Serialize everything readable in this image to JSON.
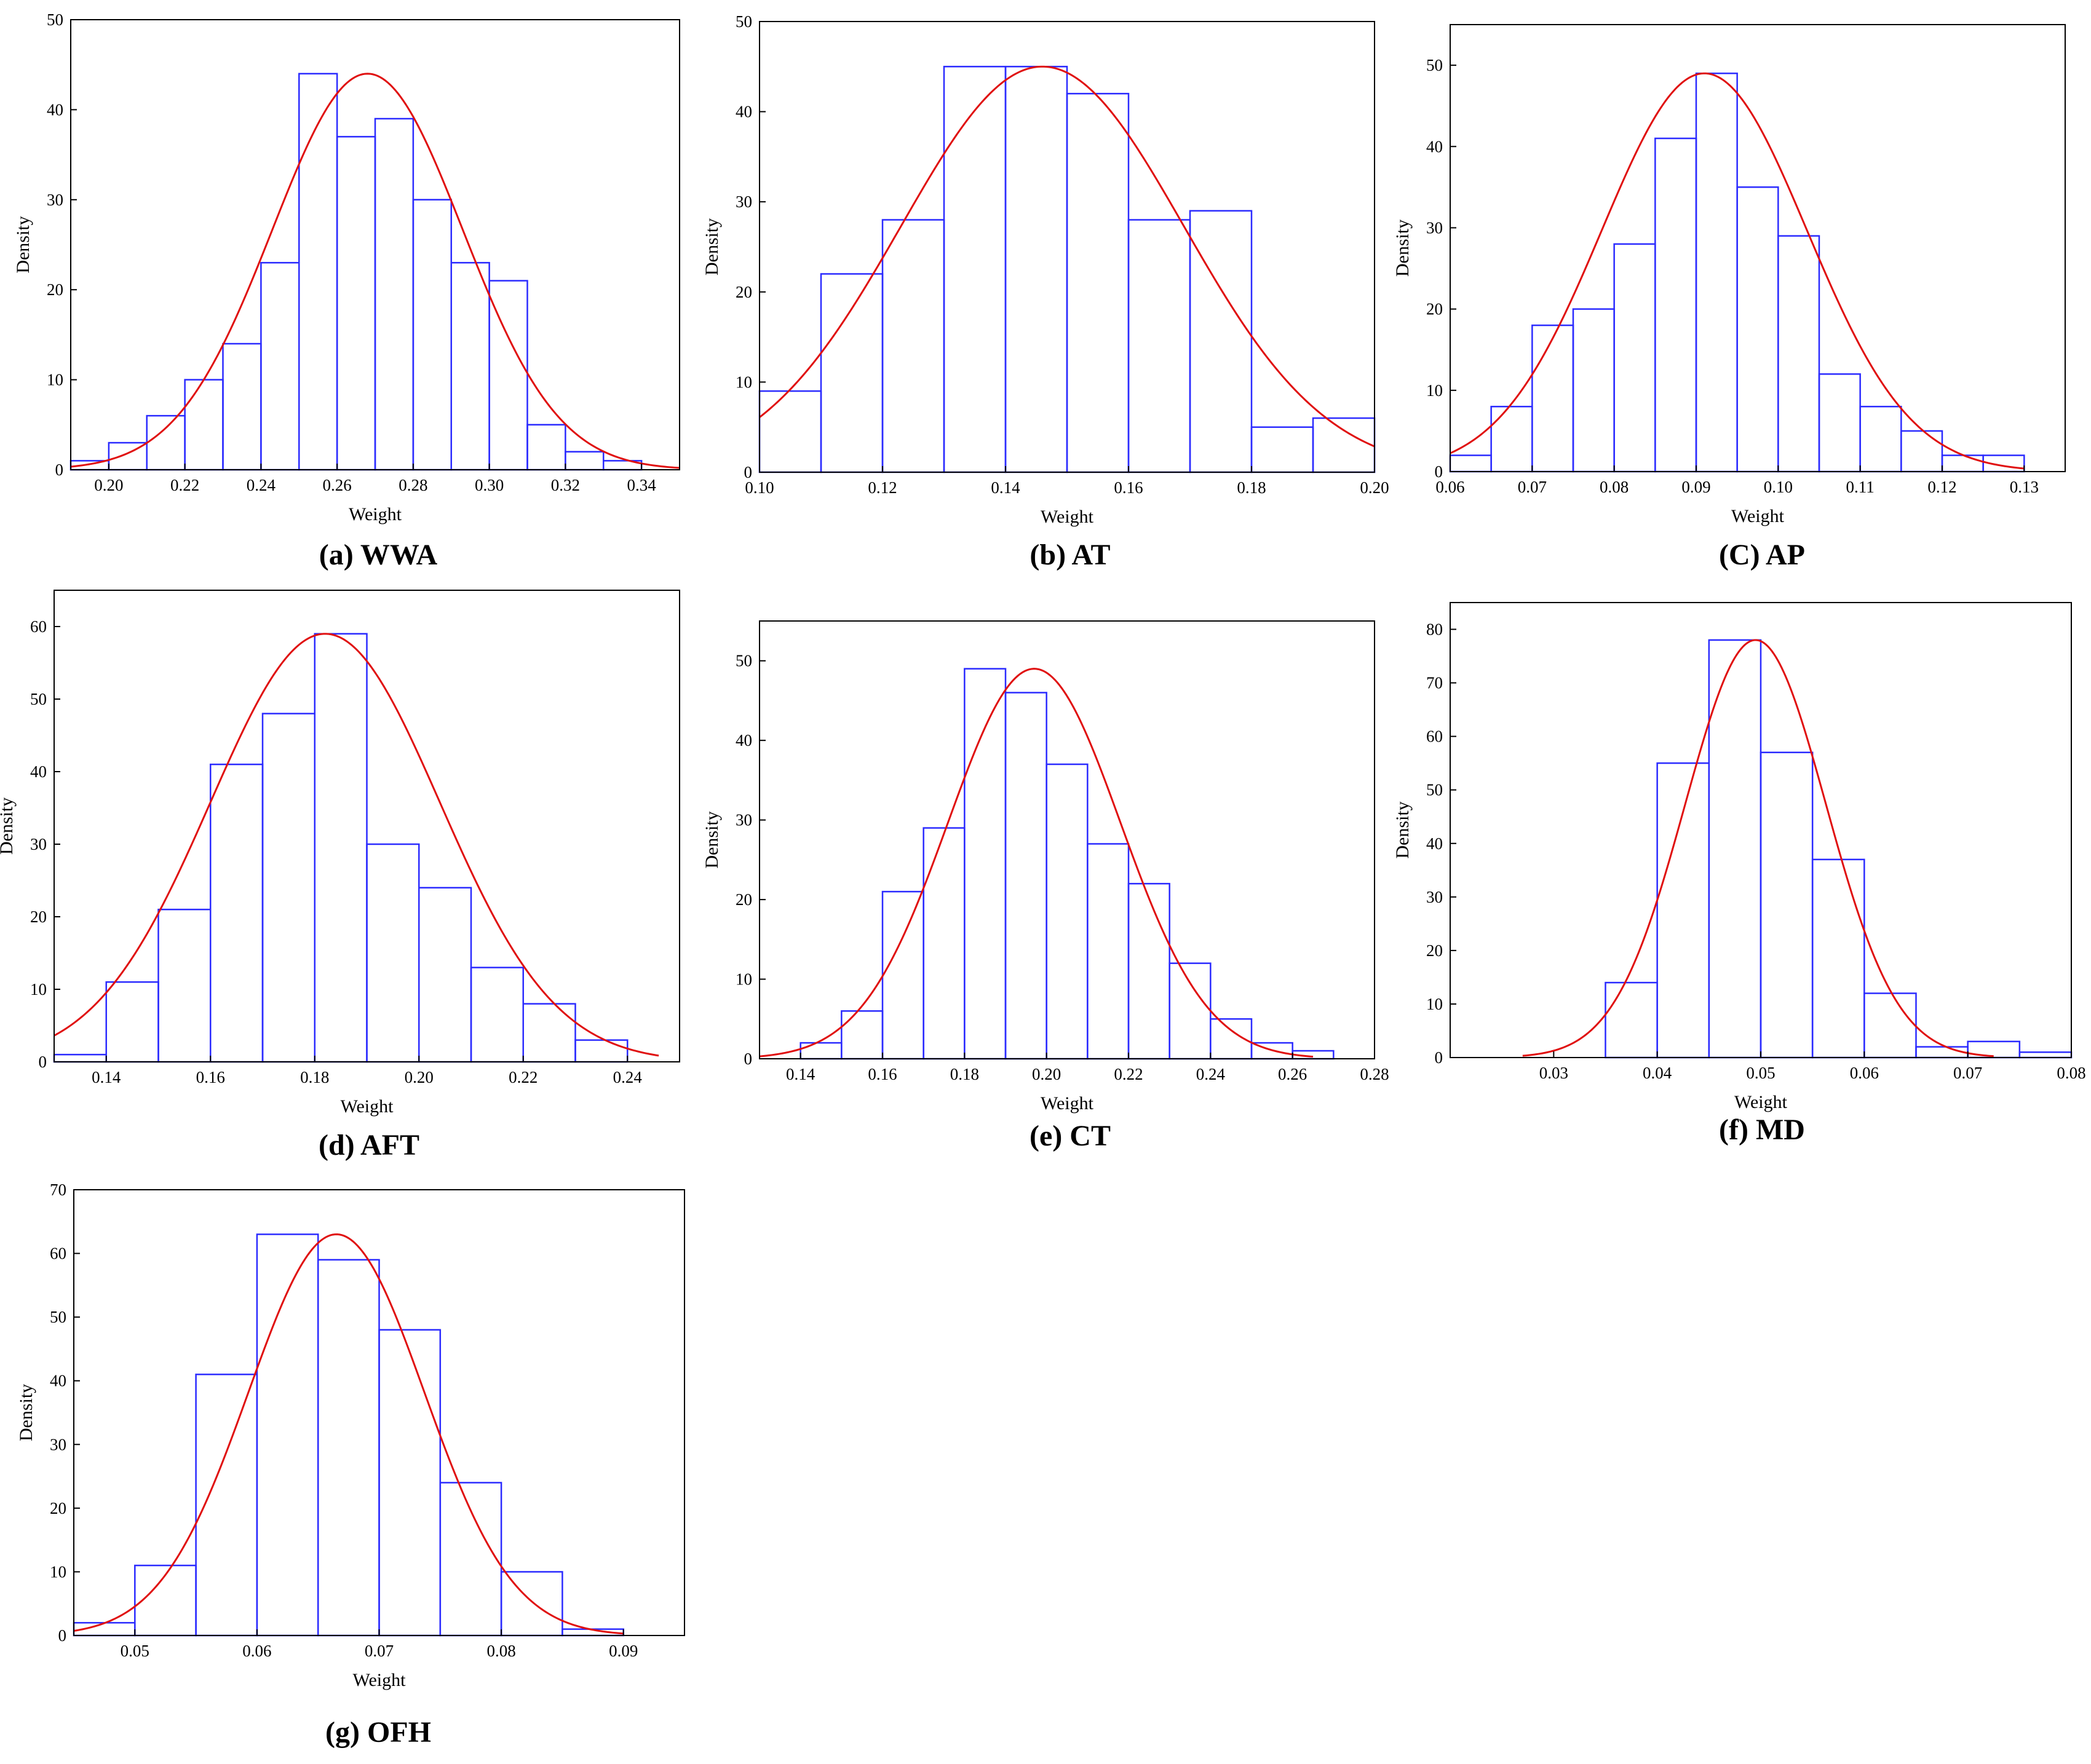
{
  "colors": {
    "bar_stroke": "#2b2bff",
    "curve": "#e01010",
    "axis": "#000000",
    "background": "#ffffff"
  },
  "chart_data": [
    {
      "id": "wwa",
      "type": "bar",
      "caption": "(a) WWA",
      "xlabel": "Weight",
      "ylabel": "Density",
      "xlim": [
        0.19,
        0.35
      ],
      "ylim": [
        0,
        50
      ],
      "xticks": [
        0.2,
        0.22,
        0.24,
        0.26,
        0.28,
        0.3,
        0.32,
        0.34
      ],
      "xtick_decimals": 2,
      "yticks": [
        0,
        10,
        20,
        30,
        40,
        50
      ],
      "bin_start": 0.19,
      "bin_width": 0.01,
      "values": [
        1,
        3,
        6,
        10,
        14,
        23,
        44,
        37,
        39,
        30,
        23,
        21,
        5,
        2,
        1
      ],
      "fit": {
        "peak": 44,
        "mean": 0.268,
        "sd": 0.025,
        "x_range": [
          0.19,
          0.35
        ]
      }
    },
    {
      "id": "at",
      "type": "bar",
      "caption": "(b) AT",
      "xlabel": "Weight",
      "ylabel": "Density",
      "xlim": [
        0.1,
        0.2
      ],
      "ylim": [
        0,
        50
      ],
      "xticks": [
        0.1,
        0.12,
        0.14,
        0.16,
        0.18,
        0.2
      ],
      "xtick_decimals": 2,
      "yticks": [
        0,
        10,
        20,
        30,
        40,
        50
      ],
      "bin_start": 0.1,
      "bin_width": 0.01,
      "values": [
        9,
        22,
        28,
        45,
        45,
        42,
        28,
        29,
        5,
        6
      ],
      "fit": {
        "peak": 45,
        "mean": 0.146,
        "sd": 0.023,
        "x_range": [
          0.1,
          0.2
        ]
      }
    },
    {
      "id": "ap",
      "type": "bar",
      "caption": "(C) AP",
      "xlabel": "Weight",
      "ylabel": "Density",
      "xlim": [
        0.06,
        0.135
      ],
      "ylim": [
        0,
        55
      ],
      "xticks": [
        0.06,
        0.07,
        0.08,
        0.09,
        0.1,
        0.11,
        0.12,
        0.13
      ],
      "xtick_decimals": 2,
      "yticks": [
        0,
        10,
        20,
        30,
        40,
        50
      ],
      "bin_start": 0.06,
      "bin_width": 0.005,
      "values": [
        2,
        8,
        18,
        20,
        28,
        41,
        49,
        35,
        29,
        12,
        8,
        5,
        2,
        2
      ],
      "fit": {
        "peak": 49,
        "mean": 0.091,
        "sd": 0.0125,
        "x_range": [
          0.06,
          0.13
        ]
      }
    },
    {
      "id": "aft",
      "type": "bar",
      "caption": "(d) AFT",
      "xlabel": "Weight",
      "ylabel": "Density",
      "xlim": [
        0.13,
        0.25
      ],
      "ylim": [
        0,
        65
      ],
      "xticks": [
        0.14,
        0.16,
        0.18,
        0.2,
        0.22,
        0.24
      ],
      "xtick_decimals": 2,
      "yticks": [
        0,
        10,
        20,
        30,
        40,
        50,
        60
      ],
      "bin_start": 0.13,
      "bin_width": 0.01,
      "values": [
        1,
        11,
        21,
        41,
        48,
        59,
        30,
        24,
        13,
        8,
        3
      ],
      "fit": {
        "peak": 59,
        "mean": 0.182,
        "sd": 0.022,
        "x_range": [
          0.13,
          0.246
        ]
      }
    },
    {
      "id": "ct",
      "type": "bar",
      "caption": "(e) CT",
      "xlabel": "Weight",
      "ylabel": "Density",
      "xlim": [
        0.13,
        0.28
      ],
      "ylim": [
        0,
        55
      ],
      "xticks": [
        0.14,
        0.16,
        0.18,
        0.2,
        0.22,
        0.24,
        0.26,
        0.28
      ],
      "xtick_decimals": 2,
      "yticks": [
        0,
        10,
        20,
        30,
        40,
        50
      ],
      "bin_start": 0.14,
      "bin_width": 0.01,
      "values": [
        2,
        6,
        21,
        29,
        49,
        46,
        37,
        27,
        22,
        12,
        5,
        2,
        1
      ],
      "fit": {
        "peak": 49,
        "mean": 0.197,
        "sd": 0.021,
        "x_range": [
          0.13,
          0.265
        ]
      }
    },
    {
      "id": "md",
      "type": "bar",
      "caption": "(f) MD",
      "xlabel": "Weight",
      "ylabel": "Density",
      "xlim": [
        0.02,
        0.08
      ],
      "ylim": [
        0,
        85
      ],
      "xticks": [
        0.03,
        0.04,
        0.05,
        0.06,
        0.07,
        0.08
      ],
      "xtick_decimals": 2,
      "yticks": [
        0,
        10,
        20,
        30,
        40,
        50,
        60,
        70,
        80
      ],
      "bin_start": 0.035,
      "bin_width": 0.005,
      "values": [
        14,
        55,
        78,
        57,
        37,
        12,
        2,
        3,
        1
      ],
      "fit": {
        "peak": 78,
        "mean": 0.0495,
        "sd": 0.0068,
        "x_range": [
          0.027,
          0.0725
        ]
      }
    },
    {
      "id": "ofh",
      "type": "bar",
      "caption": "(g) OFH",
      "xlabel": "Weight",
      "ylabel": "Density",
      "xlim": [
        0.045,
        0.095
      ],
      "ylim": [
        0,
        70
      ],
      "xticks": [
        0.05,
        0.06,
        0.07,
        0.08,
        0.09
      ],
      "xtick_decimals": 2,
      "yticks": [
        0,
        10,
        20,
        30,
        40,
        50,
        60,
        70
      ],
      "bin_start": 0.045,
      "bin_width": 0.005,
      "values": [
        2,
        11,
        41,
        63,
        59,
        48,
        24,
        10,
        1
      ],
      "fit": {
        "peak": 63,
        "mean": 0.0665,
        "sd": 0.0072,
        "x_range": [
          0.045,
          0.09
        ]
      }
    }
  ]
}
